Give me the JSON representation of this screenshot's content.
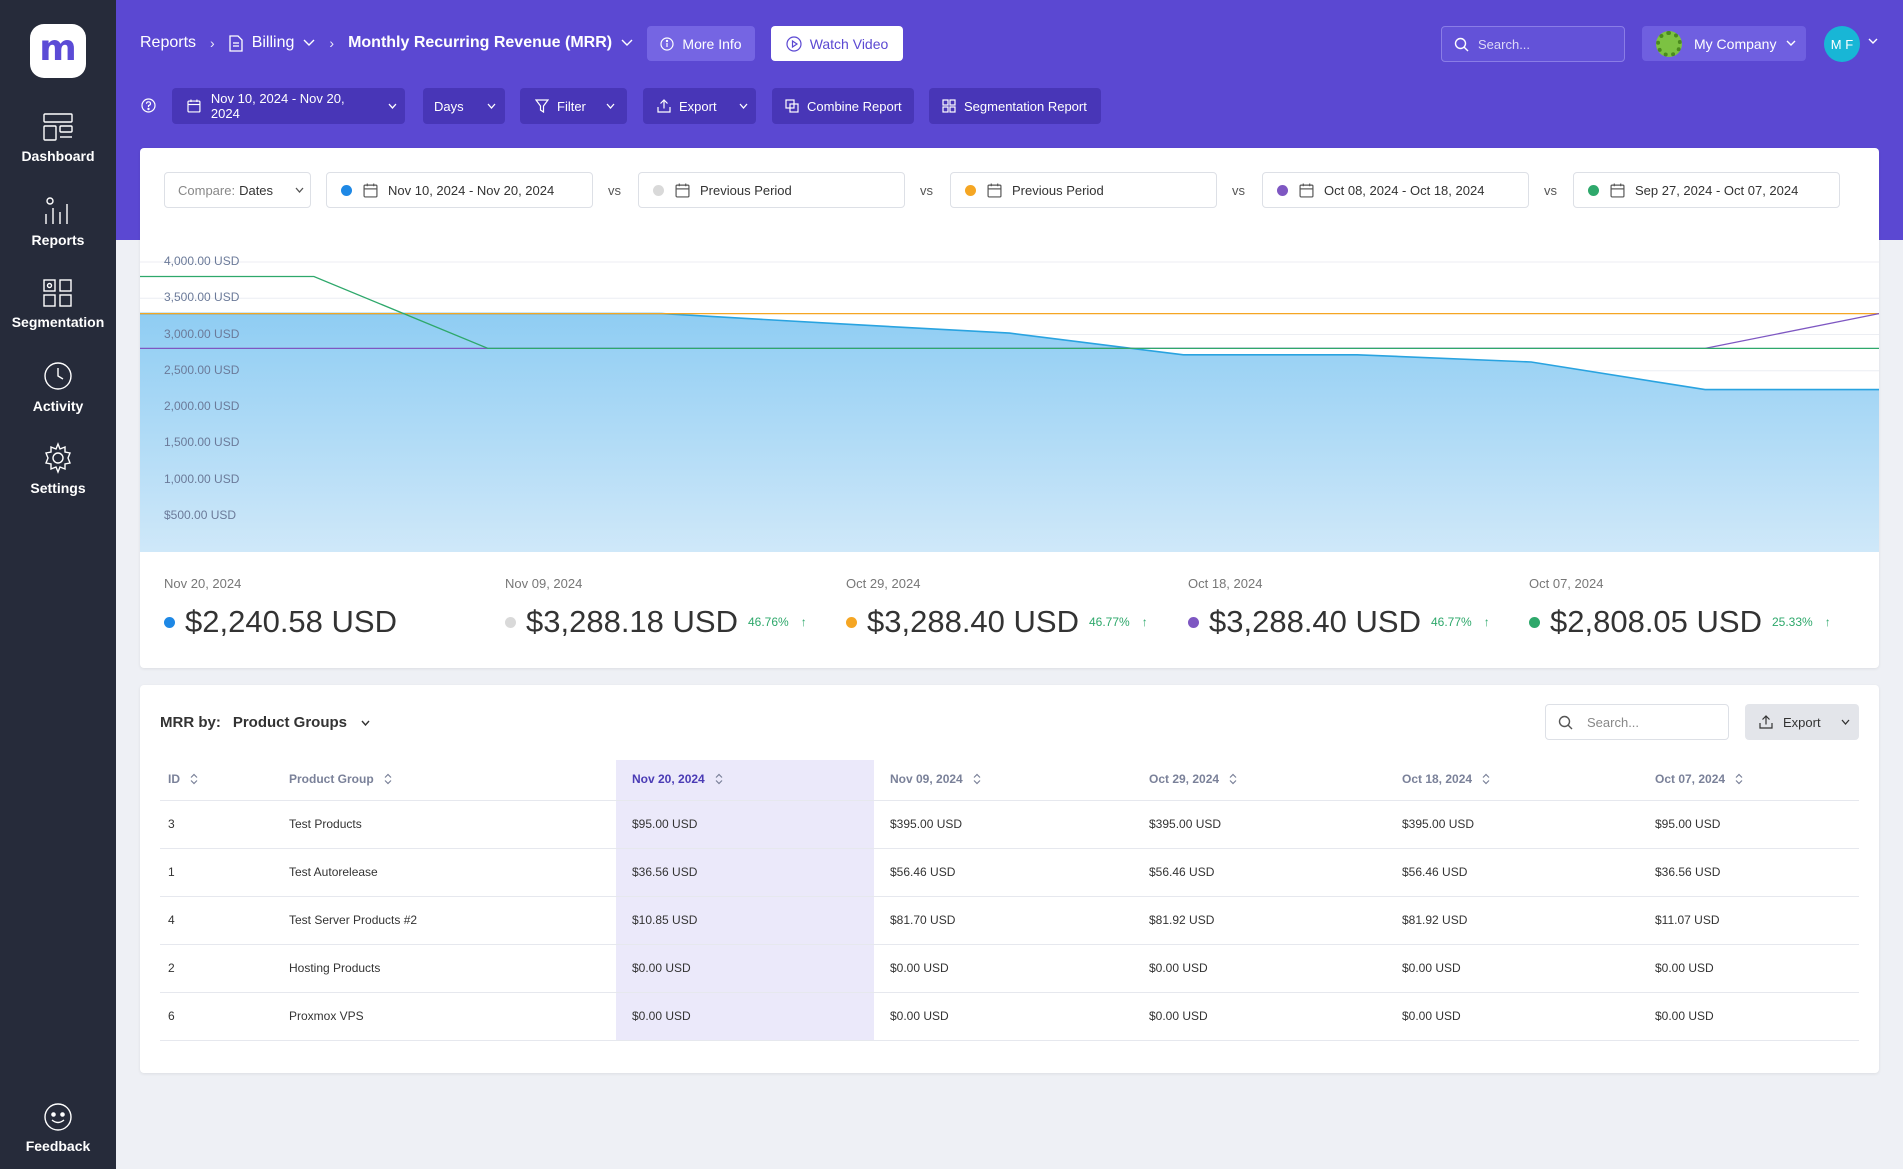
{
  "sidebar": {
    "logo": "m",
    "items": [
      {
        "label": "Dashboard",
        "icon": "dashboard-icon"
      },
      {
        "label": "Reports",
        "icon": "reports-icon"
      },
      {
        "label": "Segmentation",
        "icon": "segmentation-icon"
      },
      {
        "label": "Activity",
        "icon": "activity-icon"
      },
      {
        "label": "Settings",
        "icon": "gear-icon"
      }
    ],
    "feedback": "Feedback"
  },
  "header": {
    "breadcrumb": {
      "root": "Reports",
      "section": "Billing",
      "current": "Monthly Recurring Revenue (MRR)"
    },
    "more_info": "More Info",
    "watch_video": "Watch Video",
    "search_placeholder": "Search...",
    "company": "My Company",
    "avatar_initials": "M F"
  },
  "toolbar": {
    "date_range": "Nov 10, 2024 - Nov 20, 2024",
    "granularity": "Days",
    "filter": "Filter",
    "export": "Export",
    "combine": "Combine Report",
    "segmentation": "Segmentation Report"
  },
  "compare": {
    "label": "Compare:",
    "mode": "Dates",
    "vs": "vs",
    "periods": [
      {
        "label": "Nov 10, 2024 - Nov 20, 2024",
        "color": "#1e88e5"
      },
      {
        "label": "Previous Period",
        "color": "#d9d9d9"
      },
      {
        "label": "Previous Period",
        "color": "#f5a623"
      },
      {
        "label": "Oct 08, 2024 - Oct 18, 2024",
        "color": "#7e57c2"
      },
      {
        "label": "Sep 27, 2024 - Oct 07, 2024",
        "color": "#2ea86b"
      }
    ]
  },
  "chart_data": {
    "type": "area",
    "ylim": [
      0,
      4000
    ],
    "y_ticks": [
      "4,000.00  USD",
      "3,500.00  USD",
      "3,000.00  USD",
      "2,500.00  USD",
      "2,000.00  USD",
      "1,500.00  USD",
      "1,000.00  USD",
      "$500.00  USD"
    ],
    "series": [
      {
        "color": "#29a3e0",
        "values": [
          3288,
          3288,
          3288,
          3288,
          3150,
          3020,
          2720,
          2720,
          2620,
          2240,
          2240
        ]
      },
      {
        "color": "#f5a623",
        "values": [
          3288,
          3288,
          3288,
          3288,
          3288,
          3288,
          3288,
          3288,
          3288,
          3288,
          3288
        ]
      },
      {
        "color": "#7e57c2",
        "values": [
          2808,
          2808,
          2808,
          2808,
          2808,
          2808,
          2808,
          2808,
          2808,
          2808,
          3288
        ]
      },
      {
        "color": "#2ea86b",
        "values": [
          3800,
          3800,
          2808,
          2808,
          2808,
          2808,
          2808,
          2808,
          2808,
          2808,
          2808
        ]
      }
    ]
  },
  "stats": [
    {
      "date": "Nov 20, 2024",
      "value": "$2,240.58 USD",
      "pct": "",
      "color": "#1e88e5"
    },
    {
      "date": "Nov 09, 2024",
      "value": "$3,288.18 USD",
      "pct": "46.76%",
      "color": "#d9d9d9"
    },
    {
      "date": "Oct 29, 2024",
      "value": "$3,288.40 USD",
      "pct": "46.77%",
      "color": "#f5a623"
    },
    {
      "date": "Oct 18, 2024",
      "value": "$3,288.40 USD",
      "pct": "46.77%",
      "color": "#7e57c2"
    },
    {
      "date": "Oct 07, 2024",
      "value": "$2,808.05 USD",
      "pct": "25.33%",
      "color": "#2ea86b"
    }
  ],
  "table": {
    "mrr_by_label": "MRR by:",
    "group_by": "Product Groups",
    "search_placeholder": "Search...",
    "export": "Export",
    "columns": [
      "ID",
      "Product Group",
      "Nov 20, 2024",
      "Nov 09, 2024",
      "Oct 29, 2024",
      "Oct 18, 2024",
      "Oct 07, 2024"
    ],
    "rows": [
      [
        "3",
        "Test Products",
        "$95.00 USD",
        "$395.00 USD",
        "$395.00 USD",
        "$395.00 USD",
        "$95.00 USD"
      ],
      [
        "1",
        "Test Autorelease",
        "$36.56 USD",
        "$56.46 USD",
        "$56.46 USD",
        "$56.46 USD",
        "$36.56 USD"
      ],
      [
        "4",
        "Test Server Products #2",
        "$10.85 USD",
        "$81.70 USD",
        "$81.92 USD",
        "$81.92 USD",
        "$11.07 USD"
      ],
      [
        "2",
        "Hosting Products",
        "$0.00 USD",
        "$0.00 USD",
        "$0.00 USD",
        "$0.00 USD",
        "$0.00 USD"
      ],
      [
        "6",
        "Proxmox VPS",
        "$0.00 USD",
        "$0.00 USD",
        "$0.00 USD",
        "$0.00 USD",
        "$0.00 USD"
      ]
    ]
  }
}
